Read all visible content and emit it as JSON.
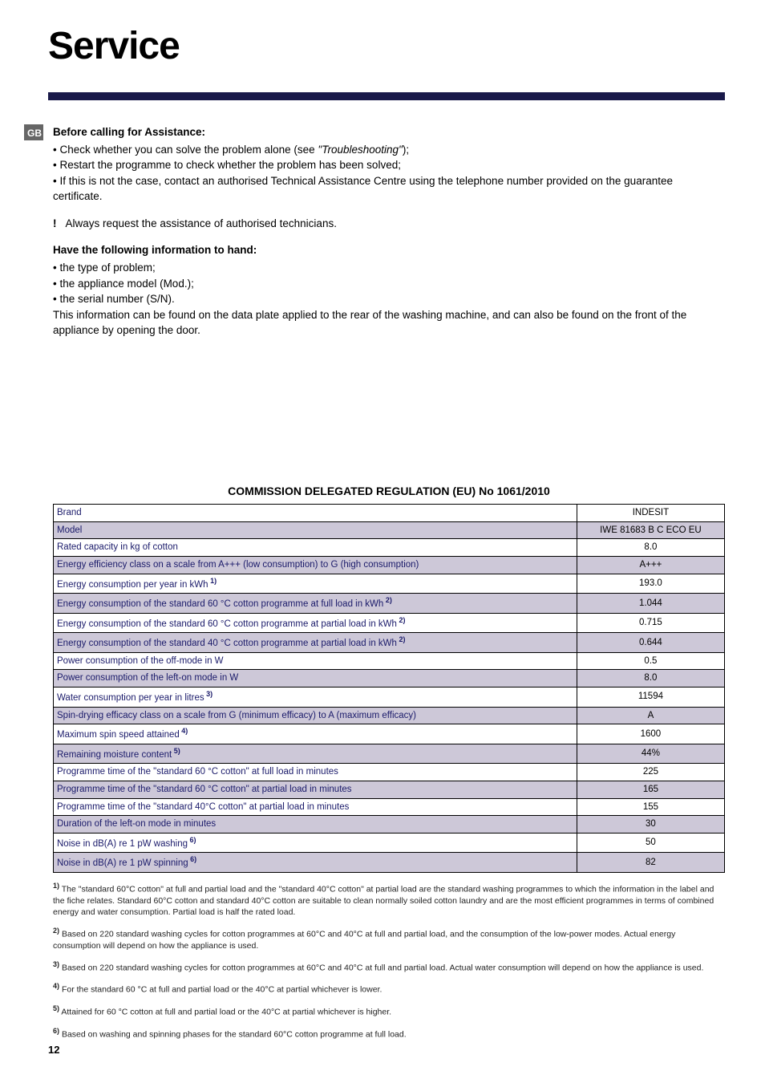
{
  "page": {
    "title": "Service",
    "lang_badge": "GB",
    "page_number": "12"
  },
  "section_before": {
    "heading": "Before calling for Assistance:",
    "bullets": [
      "Check whether you can solve the problem alone (see \"Troubleshooting\");",
      "Restart the programme to check whether the problem has been solved;",
      "If this is not the case, contact an authorised Technical Assistance Centre using the telephone number provided on the guarantee certificate."
    ],
    "warn_symbol": "!",
    "warn_text": "Always request the assistance of authorised technicians."
  },
  "section_info": {
    "heading": "Have the following information to hand:",
    "bullets": [
      "the type of problem;",
      "the appliance model (Mod.);",
      "the serial number (S/N)."
    ],
    "trailing": "This information can be found on the data plate applied to the rear of the washing machine, and can also be found on the front of the appliance by opening the door."
  },
  "regulation": {
    "title": "COMMISSION DELEGATED REGULATION (EU) No 1061/2010",
    "rows": [
      {
        "label": "Brand",
        "val": "INDESIT",
        "shaded": false,
        "sup": ""
      },
      {
        "label": "Model",
        "val": "IWE 81683 B C ECO EU",
        "shaded": true,
        "sup": ""
      },
      {
        "label": "Rated capacity in kg of cotton",
        "val": "8.0",
        "shaded": false,
        "sup": ""
      },
      {
        "label": "Energy efficiency class on a scale from A+++ (low consumption) to G (high consumption)",
        "val": "A+++",
        "shaded": true,
        "sup": ""
      },
      {
        "label": "Energy consumption per year in kWh",
        "val": "193.0",
        "shaded": false,
        "sup": "1)"
      },
      {
        "label": "Energy consumption of the standard 60 °C cotton programme at full load in kWh",
        "val": "1.044",
        "shaded": true,
        "sup": "2)"
      },
      {
        "label": "Energy consumption of the standard 60 °C cotton programme at partial load in kWh",
        "val": "0.715",
        "shaded": false,
        "sup": "2)"
      },
      {
        "label": "Energy consumption of the standard 40 °C cotton programme at partial load in kWh",
        "val": "0.644",
        "shaded": true,
        "sup": "2)"
      },
      {
        "label": "Power consumption of the off-mode in W",
        "val": "0.5",
        "shaded": false,
        "sup": ""
      },
      {
        "label": "Power consumption of the left-on mode in W",
        "val": "8.0",
        "shaded": true,
        "sup": ""
      },
      {
        "label": "Water consumption per year in litres",
        "val": "11594",
        "shaded": false,
        "sup": "3)"
      },
      {
        "label": "Spin-drying efficacy class on a scale from G (minimum efficacy) to A (maximum efficacy)",
        "val": "A",
        "shaded": true,
        "sup": ""
      },
      {
        "label": "Maximum spin speed attained",
        "val": "1600",
        "shaded": false,
        "sup": "4)"
      },
      {
        "label": "Remaining moisture content",
        "val": "44%",
        "shaded": true,
        "sup": "5)"
      },
      {
        "label": "Programme time of the \"standard 60 °C cotton\" at full load in minutes",
        "val": "225",
        "shaded": false,
        "sup": ""
      },
      {
        "label": "Programme time of the \"standard 60 °C cotton\" at partial load in minutes",
        "val": "165",
        "shaded": true,
        "sup": ""
      },
      {
        "label": "Programme time of the \"standard 40°C cotton\" at partial load in minutes",
        "val": "155",
        "shaded": false,
        "sup": ""
      },
      {
        "label": "Duration of the left-on mode in minutes",
        "val": "30",
        "shaded": true,
        "sup": ""
      },
      {
        "label": "Noise in dB(A) re 1 pW washing",
        "val": "50",
        "shaded": false,
        "sup": "6)"
      },
      {
        "label": "Noise in dB(A) re 1 pW spinning",
        "val": "82",
        "shaded": true,
        "sup": "6)"
      }
    ]
  },
  "footnotes": {
    "f1": "The \"standard 60°C cotton\" at full and partial load and the \"standard 40°C cotton\" at partial load are the standard washing programmes to which the information in the label and the fiche relates. Standard 60°C cotton and standard 40°C cotton are suitable to clean normally soiled cotton laundry and are the most efficient programmes in terms of combined energy and water consumption. Partial load is half the rated load.",
    "f2": "Based on 220 standard washing cycles for cotton programmes at 60°C and 40°C at full and partial load, and the consumption of the low-power modes. Actual energy consumption will depend on how the appliance is used.",
    "f3": "Based on 220 standard washing cycles for cotton programmes at 60°C and 40°C at full and partial load. Actual water consumption will depend on how the appliance is used.",
    "f4": "For the standard 60 °C at full and partial load or the 40°C at partial whichever is lower.",
    "f5": "Attained for 60 °C cotton at full and partial load or the 40°C at partial whichever is higher.",
    "f6": "Based on washing and spinning phases for the standard 60°C cotton programme at full load."
  }
}
